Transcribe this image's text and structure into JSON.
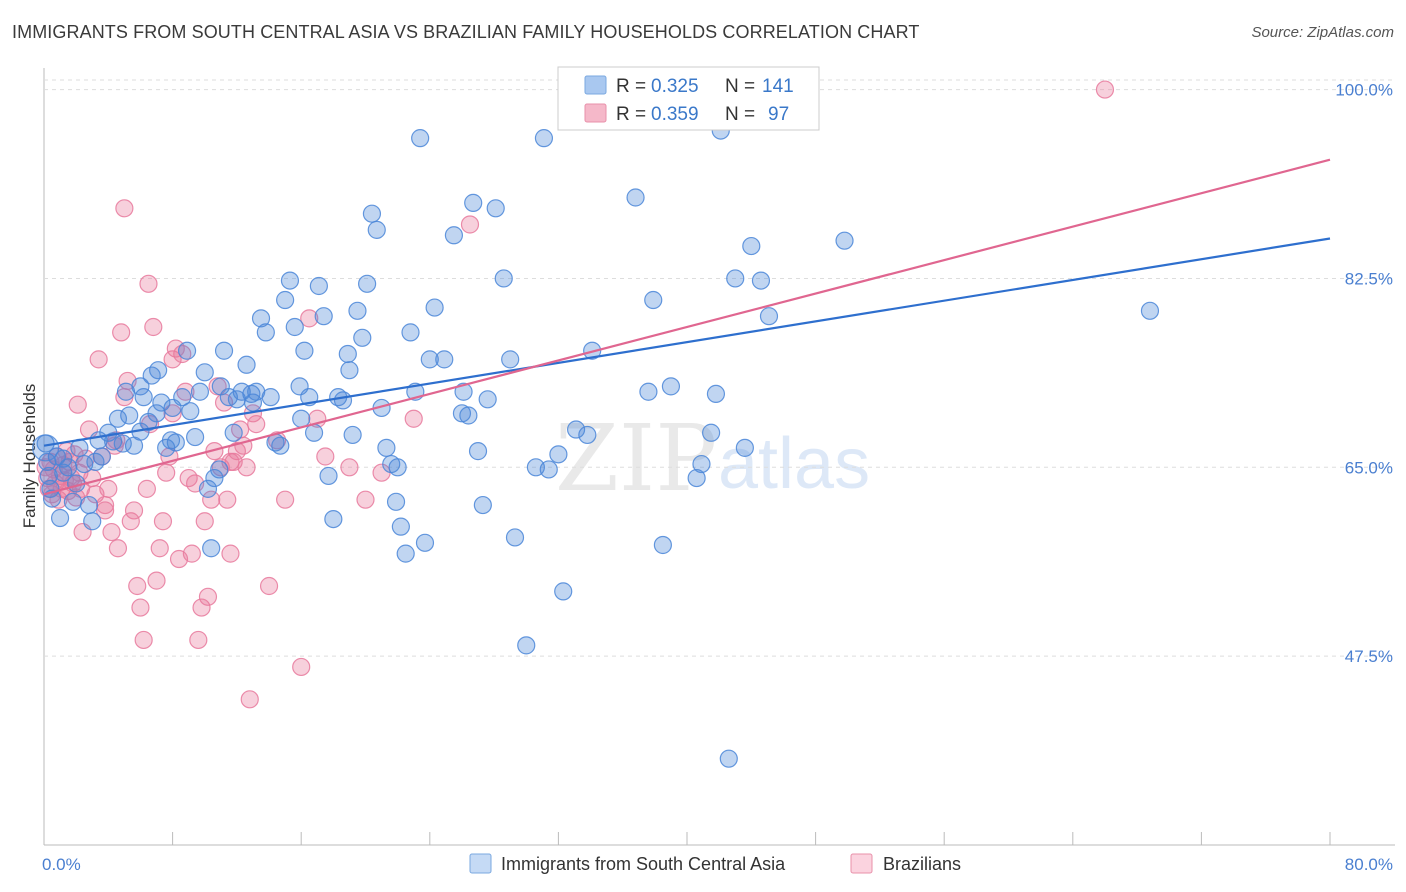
{
  "title": "IMMIGRANTS FROM SOUTH CENTRAL ASIA VS BRAZILIAN FAMILY HOUSEHOLDS CORRELATION CHART",
  "source": "Source: ZipAtlas.com",
  "watermark": {
    "zip": "ZIP",
    "atlas": "atlas"
  },
  "legend": {
    "r_label": "R =",
    "n_label": "N =",
    "entries": [
      {
        "r": "0.325",
        "n": "141",
        "color": "#a9c8f0"
      },
      {
        "r": "0.359",
        "n": "97",
        "color": "#f5b8c9"
      }
    ]
  },
  "bottom_legend": [
    {
      "label": "Immigrants from South Central Asia",
      "color": "#a9c8f0"
    },
    {
      "label": "Brazilians",
      "color": "#f5b8c9"
    }
  ],
  "colors": {
    "blue": "#4a86d8",
    "pink": "#e8799c",
    "blue_line": "#2e6fce",
    "pink_line": "#e06690",
    "grid": "#dddddd"
  },
  "chart_data": {
    "type": "scatter",
    "title": "IMMIGRANTS FROM SOUTH CENTRAL ASIA VS BRAZILIAN FAMILY HOUSEHOLDS CORRELATION CHART",
    "xlabel": "",
    "ylabel": "Family Households",
    "xlim": [
      0,
      80
    ],
    "ylim": [
      30,
      102
    ],
    "x_tick_labels": [
      "0.0%",
      "80.0%"
    ],
    "y_ticks": [
      47.5,
      65.0,
      82.5,
      100.0
    ],
    "y_tick_labels": [
      "47.5%",
      "65.0%",
      "82.5%",
      "100.0%"
    ],
    "grid": true,
    "series": [
      {
        "name": "Immigrants from South Central Asia",
        "trend": {
          "x": [
            0,
            80
          ],
          "y": [
            67.0,
            86.2
          ]
        },
        "points": [
          [
            0.1,
            67.2
          ],
          [
            0.2,
            65.5
          ],
          [
            0.3,
            64.2
          ],
          [
            0.4,
            63.0
          ],
          [
            0.5,
            62.1
          ],
          [
            0.8,
            66.0
          ],
          [
            1.0,
            60.3
          ],
          [
            1.2,
            64.5
          ],
          [
            1.5,
            65.0
          ],
          [
            1.8,
            61.8
          ],
          [
            2.0,
            63.5
          ],
          [
            2.2,
            66.8
          ],
          [
            2.5,
            65.3
          ],
          [
            2.8,
            61.5
          ],
          [
            3.0,
            60.0
          ],
          [
            3.2,
            65.5
          ],
          [
            3.4,
            67.5
          ],
          [
            3.6,
            66.0
          ],
          [
            4.0,
            68.2
          ],
          [
            4.3,
            67.4
          ],
          [
            4.6,
            69.5
          ],
          [
            4.9,
            67.2
          ],
          [
            5.1,
            72.0
          ],
          [
            5.3,
            69.8
          ],
          [
            5.6,
            67.0
          ],
          [
            6.0,
            68.3
          ],
          [
            6.2,
            71.5
          ],
          [
            6.5,
            69.2
          ],
          [
            6.7,
            73.5
          ],
          [
            7.0,
            70.0
          ],
          [
            7.1,
            74.0
          ],
          [
            7.3,
            71.0
          ],
          [
            7.6,
            66.8
          ],
          [
            7.9,
            67.5
          ],
          [
            8.2,
            67.3
          ],
          [
            8.6,
            71.5
          ],
          [
            8.9,
            75.8
          ],
          [
            9.1,
            70.2
          ],
          [
            9.4,
            67.8
          ],
          [
            9.7,
            72.0
          ],
          [
            10.0,
            73.8
          ],
          [
            10.2,
            63.0
          ],
          [
            10.4,
            57.5
          ],
          [
            10.6,
            64.0
          ],
          [
            10.9,
            64.8
          ],
          [
            11.2,
            75.8
          ],
          [
            11.5,
            71.5
          ],
          [
            11.8,
            68.2
          ],
          [
            12.0,
            71.3
          ],
          [
            12.3,
            72.0
          ],
          [
            12.6,
            74.5
          ],
          [
            12.9,
            71.8
          ],
          [
            13.2,
            72.0
          ],
          [
            13.5,
            78.8
          ],
          [
            13.8,
            77.5
          ],
          [
            14.1,
            71.5
          ],
          [
            14.4,
            67.3
          ],
          [
            14.7,
            67.0
          ],
          [
            15.0,
            80.5
          ],
          [
            15.3,
            82.3
          ],
          [
            15.6,
            78.0
          ],
          [
            15.9,
            72.5
          ],
          [
            16.2,
            75.8
          ],
          [
            16.5,
            71.5
          ],
          [
            16.8,
            68.2
          ],
          [
            17.1,
            81.8
          ],
          [
            17.4,
            79.0
          ],
          [
            17.7,
            64.2
          ],
          [
            18.0,
            60.2
          ],
          [
            18.3,
            71.5
          ],
          [
            18.6,
            71.2
          ],
          [
            18.9,
            75.5
          ],
          [
            19.2,
            68.0
          ],
          [
            19.5,
            79.5
          ],
          [
            19.8,
            77.0
          ],
          [
            20.1,
            82.0
          ],
          [
            20.4,
            88.5
          ],
          [
            20.7,
            87.0
          ],
          [
            21.0,
            70.5
          ],
          [
            21.3,
            66.8
          ],
          [
            21.6,
            65.3
          ],
          [
            21.9,
            61.8
          ],
          [
            22.2,
            59.5
          ],
          [
            22.5,
            57.0
          ],
          [
            22.8,
            77.5
          ],
          [
            23.1,
            72.0
          ],
          [
            23.4,
            95.5
          ],
          [
            23.7,
            58.0
          ],
          [
            24.0,
            75.0
          ],
          [
            24.3,
            79.8
          ],
          [
            24.9,
            75.0
          ],
          [
            25.5,
            86.5
          ],
          [
            26.1,
            72.0
          ],
          [
            26.4,
            69.8
          ],
          [
            26.7,
            89.5
          ],
          [
            27.0,
            66.5
          ],
          [
            27.3,
            61.5
          ],
          [
            27.6,
            71.3
          ],
          [
            28.1,
            89.0
          ],
          [
            28.6,
            82.5
          ],
          [
            29.0,
            75.0
          ],
          [
            29.3,
            58.5
          ],
          [
            30.6,
            65.0
          ],
          [
            31.1,
            95.5
          ],
          [
            31.4,
            64.8
          ],
          [
            32.0,
            66.2
          ],
          [
            32.3,
            53.5
          ],
          [
            33.1,
            68.5
          ],
          [
            33.8,
            68.0
          ],
          [
            34.1,
            75.8
          ],
          [
            36.8,
            90.0
          ],
          [
            37.6,
            72.0
          ],
          [
            37.9,
            80.5
          ],
          [
            38.5,
            57.8
          ],
          [
            40.6,
            64.0
          ],
          [
            40.9,
            65.3
          ],
          [
            41.5,
            68.2
          ],
          [
            41.8,
            71.8
          ],
          [
            42.1,
            96.2
          ],
          [
            42.6,
            38.0
          ],
          [
            43.0,
            82.5
          ],
          [
            43.6,
            66.8
          ],
          [
            44.0,
            85.5
          ],
          [
            44.6,
            82.3
          ],
          [
            45.1,
            79.0
          ],
          [
            49.8,
            86.0
          ],
          [
            43.2,
            97.5
          ],
          [
            47.0,
            98.0
          ],
          [
            33.0,
            97.8
          ],
          [
            30.0,
            48.5
          ],
          [
            6.0,
            72.5
          ],
          [
            8.0,
            70.5
          ],
          [
            11.0,
            72.5
          ],
          [
            13.0,
            71.0
          ],
          [
            16.0,
            69.5
          ],
          [
            19.0,
            74.0
          ],
          [
            22.0,
            65.0
          ],
          [
            26.0,
            70.0
          ],
          [
            39.0,
            72.5
          ],
          [
            68.8,
            79.5
          ],
          [
            1.2,
            65.8
          ]
        ]
      },
      {
        "name": "Brazilians",
        "trend": {
          "x": [
            0,
            80
          ],
          "y": [
            62.5,
            93.5
          ]
        },
        "points": [
          [
            0.1,
            65.0
          ],
          [
            0.2,
            64.0
          ],
          [
            0.3,
            63.0
          ],
          [
            0.4,
            65.5
          ],
          [
            0.5,
            62.5
          ],
          [
            0.6,
            64.8
          ],
          [
            0.7,
            63.5
          ],
          [
            0.8,
            66.0
          ],
          [
            0.9,
            62.0
          ],
          [
            1.0,
            64.2
          ],
          [
            1.1,
            63.0
          ],
          [
            1.2,
            65.2
          ],
          [
            1.3,
            63.8
          ],
          [
            1.4,
            66.5
          ],
          [
            1.5,
            62.8
          ],
          [
            1.6,
            65.5
          ],
          [
            1.7,
            64.0
          ],
          [
            1.8,
            63.5
          ],
          [
            1.9,
            66.2
          ],
          [
            2.0,
            62.2
          ],
          [
            2.1,
            70.8
          ],
          [
            2.2,
            64.5
          ],
          [
            2.3,
            63.0
          ],
          [
            2.4,
            59.0
          ],
          [
            2.6,
            65.8
          ],
          [
            2.8,
            68.5
          ],
          [
            3.0,
            64.0
          ],
          [
            3.2,
            62.5
          ],
          [
            3.4,
            75.0
          ],
          [
            3.6,
            66.0
          ],
          [
            3.8,
            61.5
          ],
          [
            4.0,
            63.0
          ],
          [
            4.2,
            59.0
          ],
          [
            4.4,
            67.0
          ],
          [
            4.6,
            57.5
          ],
          [
            4.8,
            77.5
          ],
          [
            5.0,
            71.5
          ],
          [
            5.2,
            73.0
          ],
          [
            5.4,
            60.0
          ],
          [
            5.6,
            61.0
          ],
          [
            5.8,
            54.0
          ],
          [
            6.0,
            52.0
          ],
          [
            6.2,
            49.0
          ],
          [
            6.4,
            63.0
          ],
          [
            6.6,
            69.0
          ],
          [
            6.8,
            78.0
          ],
          [
            7.0,
            54.5
          ],
          [
            7.2,
            57.5
          ],
          [
            7.4,
            60.0
          ],
          [
            7.6,
            64.5
          ],
          [
            7.8,
            66.0
          ],
          [
            8.0,
            70.0
          ],
          [
            8.2,
            76.0
          ],
          [
            8.4,
            56.5
          ],
          [
            8.6,
            75.5
          ],
          [
            8.8,
            72.0
          ],
          [
            9.0,
            64.0
          ],
          [
            9.2,
            57.0
          ],
          [
            9.4,
            63.5
          ],
          [
            9.6,
            49.0
          ],
          [
            9.8,
            52.0
          ],
          [
            10.0,
            60.0
          ],
          [
            10.2,
            53.0
          ],
          [
            10.4,
            62.0
          ],
          [
            10.6,
            66.5
          ],
          [
            10.8,
            72.5
          ],
          [
            11.0,
            65.0
          ],
          [
            11.2,
            71.0
          ],
          [
            11.4,
            62.0
          ],
          [
            11.6,
            57.0
          ],
          [
            11.8,
            65.5
          ],
          [
            12.0,
            66.5
          ],
          [
            12.2,
            68.5
          ],
          [
            12.4,
            67.0
          ],
          [
            12.6,
            65.0
          ],
          [
            12.8,
            43.5
          ],
          [
            13.0,
            70.0
          ],
          [
            13.2,
            69.0
          ],
          [
            14.0,
            54.0
          ],
          [
            14.5,
            67.5
          ],
          [
            15.0,
            62.0
          ],
          [
            16.0,
            46.5
          ],
          [
            16.5,
            78.8
          ],
          [
            17.0,
            69.5
          ],
          [
            17.5,
            66.0
          ],
          [
            19.0,
            65.0
          ],
          [
            20.0,
            62.0
          ],
          [
            21.0,
            64.5
          ],
          [
            23.0,
            69.5
          ],
          [
            26.5,
            87.5
          ],
          [
            5.0,
            89.0
          ],
          [
            6.5,
            82.0
          ],
          [
            8.0,
            75.0
          ],
          [
            11.6,
            65.5
          ],
          [
            4.5,
            67.5
          ],
          [
            3.8,
            61.0
          ],
          [
            66.0,
            100.0
          ]
        ]
      }
    ]
  }
}
